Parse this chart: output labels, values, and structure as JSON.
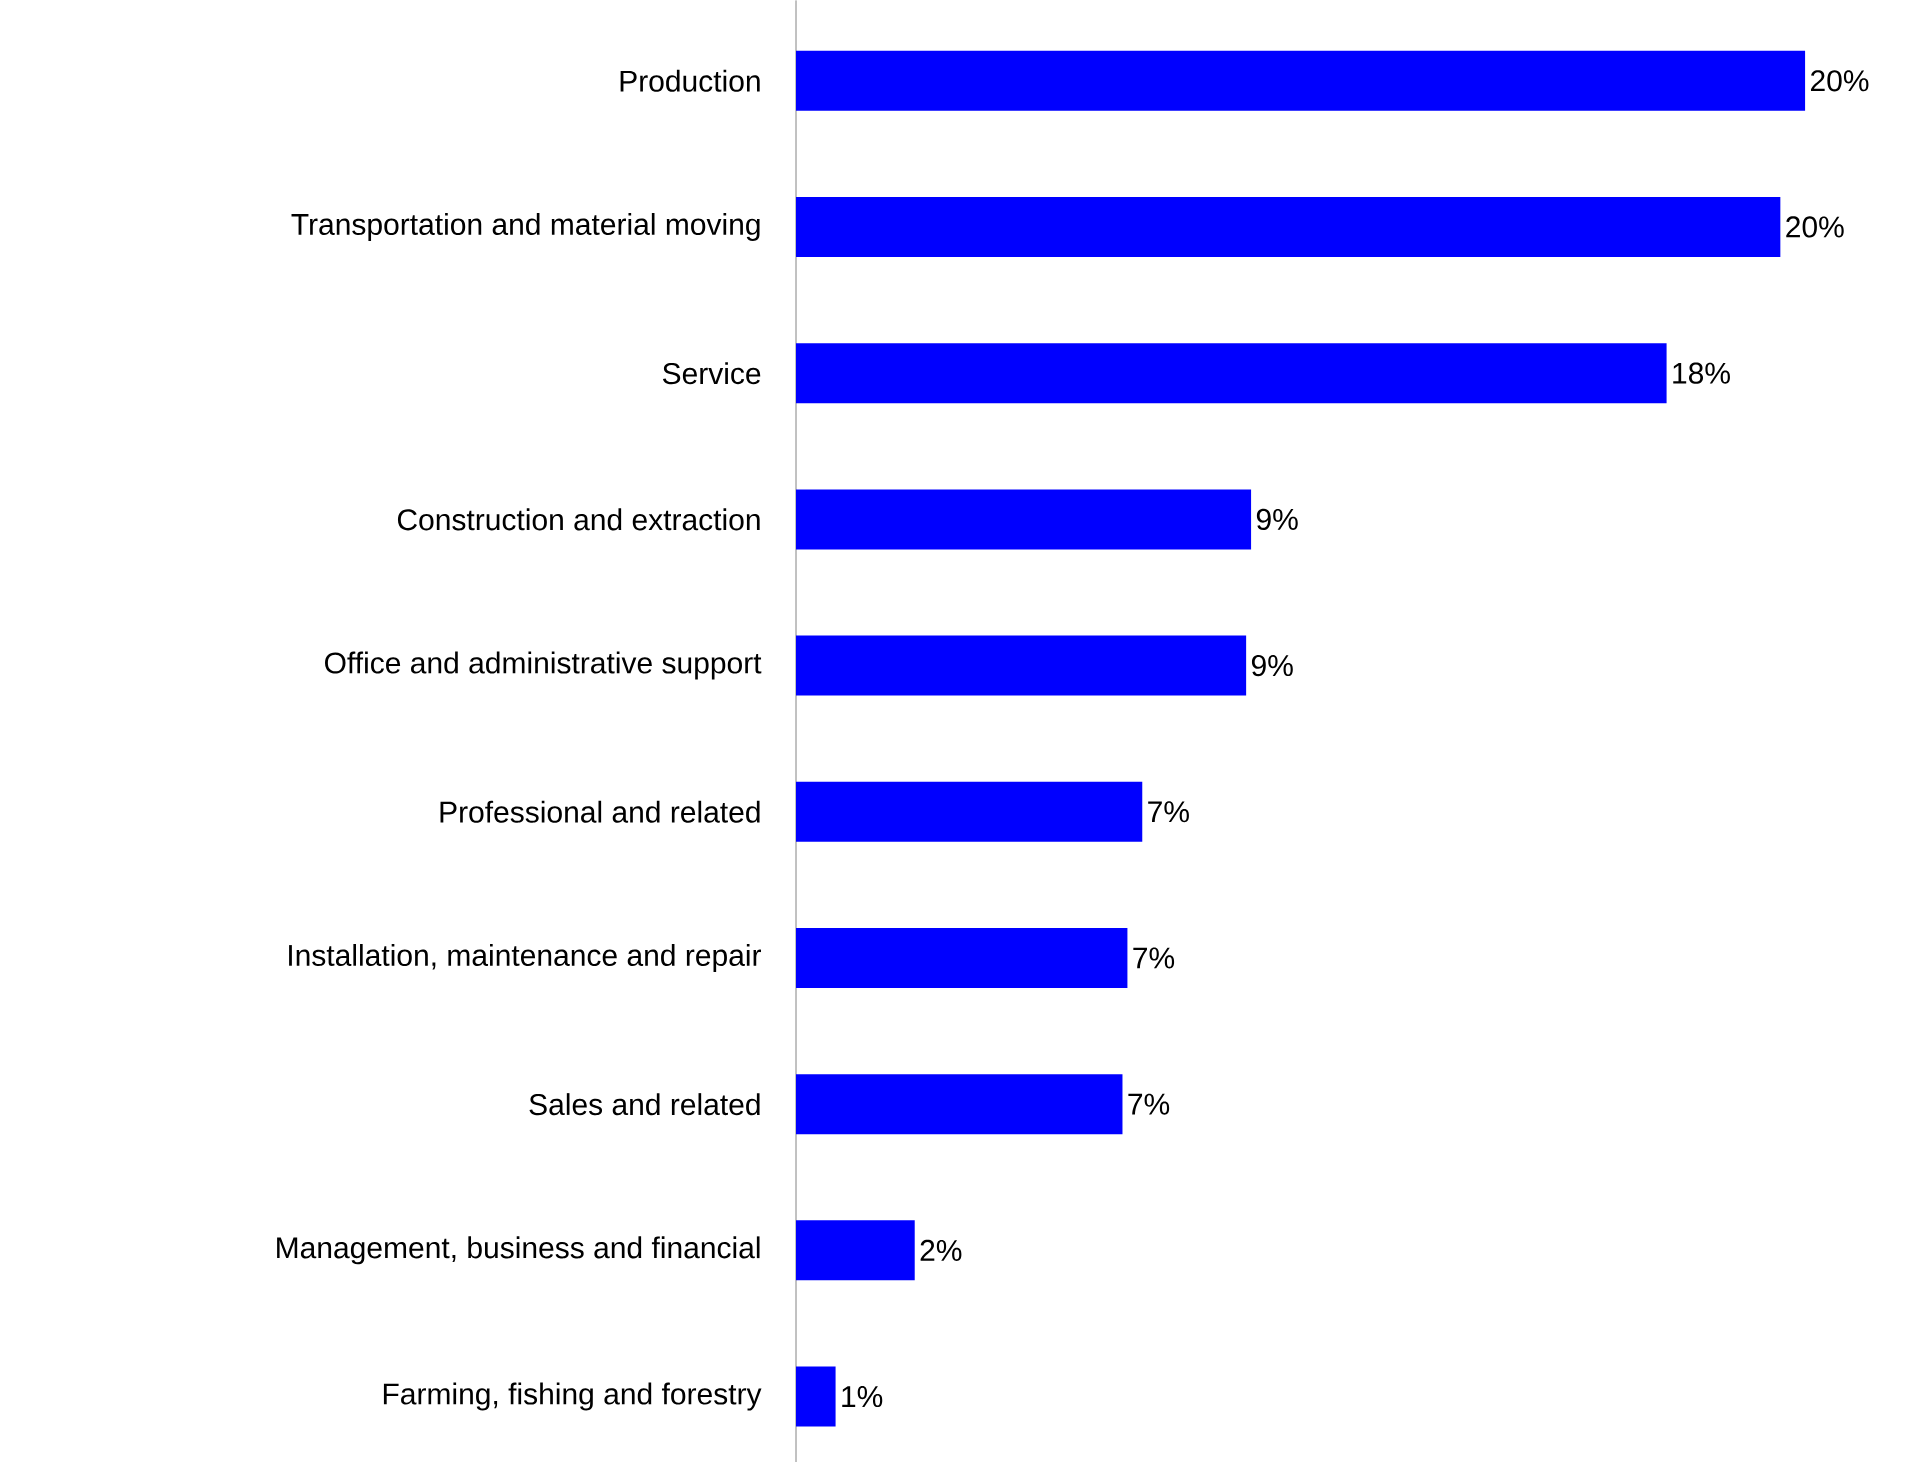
{
  "chart_data": {
    "type": "bar",
    "orientation": "horizontal",
    "categories": [
      "Production",
      "Transportation and material moving",
      "Service",
      "Construction and extraction",
      "Office and administrative support",
      "Professional and related",
      "Installation, maintenance and repair",
      "Sales and related",
      "Management, business and financial",
      "Farming, fishing and forestry"
    ],
    "values": [
      20.4,
      19.9,
      17.6,
      9.2,
      9.1,
      7.0,
      6.7,
      6.6,
      2.4,
      0.8
    ],
    "value_labels": [
      "20%",
      "20%",
      "18%",
      "9%",
      "9%",
      "7%",
      "7%",
      "7%",
      "2%",
      "1%"
    ],
    "color": "#0000ff"
  }
}
